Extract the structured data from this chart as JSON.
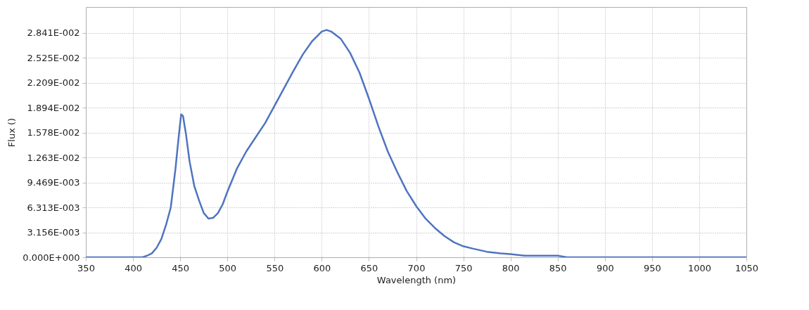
{
  "chart_data": {
    "type": "line",
    "xlabel": "Wavelength (nm)",
    "ylabel": "Flux ()",
    "xlim": [
      350,
      1050
    ],
    "xticks": [
      350,
      400,
      450,
      500,
      550,
      600,
      650,
      700,
      750,
      800,
      850,
      900,
      950,
      1000,
      1050
    ],
    "ylim": [
      0,
      0.0317
    ],
    "yticks": [
      {
        "value": 0,
        "label": "0.000E+000"
      },
      {
        "value": 0.003156,
        "label": "3.156E-003"
      },
      {
        "value": 0.006313,
        "label": "6.313E-003"
      },
      {
        "value": 0.009469,
        "label": "9.469E-003"
      },
      {
        "value": 0.01263,
        "label": "1.263E-002"
      },
      {
        "value": 0.01578,
        "label": "1.578E-002"
      },
      {
        "value": 0.01894,
        "label": "1.894E-002"
      },
      {
        "value": 0.02209,
        "label": "2.209E-002"
      },
      {
        "value": 0.02525,
        "label": "2.525E-002"
      },
      {
        "value": 0.02841,
        "label": "2.841E-002"
      }
    ],
    "grid": true,
    "marker": "none",
    "line_style": "solid",
    "series": [
      {
        "color": "#4f74c0",
        "x": [
          350,
          380,
          410,
          415,
          420,
          425,
          430,
          435,
          440,
          445,
          448,
          451,
          453,
          456,
          460,
          465,
          470,
          475,
          480,
          485,
          490,
          495,
          500,
          510,
          520,
          530,
          540,
          550,
          560,
          570,
          580,
          590,
          600,
          605,
          610,
          620,
          630,
          640,
          650,
          660,
          670,
          680,
          690,
          700,
          710,
          720,
          730,
          740,
          750,
          760,
          775,
          790,
          800,
          815,
          850,
          860,
          900,
          1000,
          1050
        ],
        "values": [
          0,
          0,
          0,
          0.0002,
          0.0005,
          0.0012,
          0.0023,
          0.0041,
          0.0063,
          0.0112,
          0.0148,
          0.0181,
          0.0179,
          0.0157,
          0.0121,
          0.009,
          0.0072,
          0.0056,
          0.0049,
          0.005,
          0.0056,
          0.0067,
          0.0083,
          0.0112,
          0.0134,
          0.0152,
          0.017,
          0.0192,
          0.0214,
          0.0236,
          0.0257,
          0.0274,
          0.0286,
          0.0288,
          0.0286,
          0.0277,
          0.0259,
          0.0234,
          0.0201,
          0.0166,
          0.0134,
          0.0108,
          0.0084,
          0.0065,
          0.0049,
          0.0037,
          0.0027,
          0.0019,
          0.0014,
          0.0011,
          0.0007,
          0.0005,
          0.0004,
          0.0002,
          0.0002,
          0,
          0,
          0,
          0
        ]
      }
    ]
  }
}
